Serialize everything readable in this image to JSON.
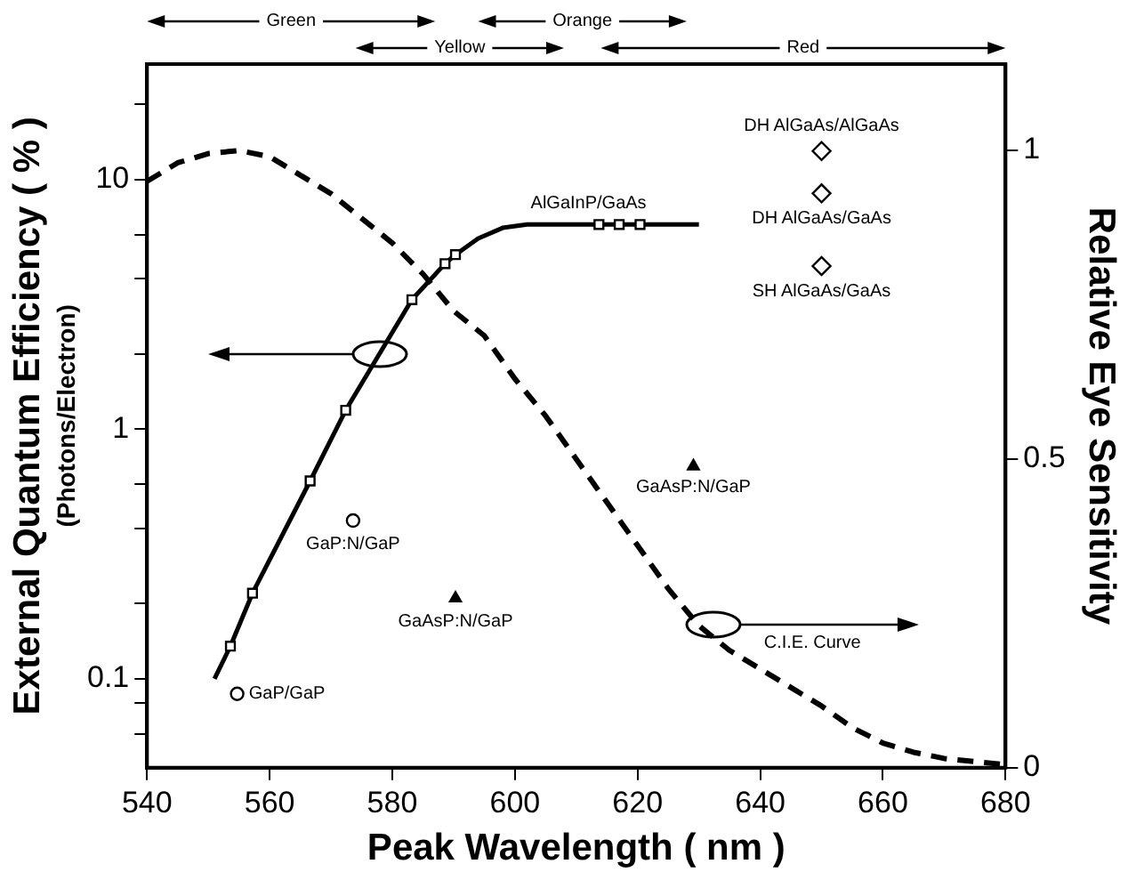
{
  "chart_data": {
    "type": "line",
    "xlabel": "Peak Wavelength ( nm )",
    "ylabel": "External Quantum Efficiency ( % )\n(Photons/Electron)",
    "y2label": "Relative Eye Sensitivity",
    "xlim": [
      540,
      680
    ],
    "xticks": [
      540,
      560,
      580,
      600,
      620,
      640,
      660,
      680
    ],
    "ylim": [
      0.044,
      29
    ],
    "log": "y",
    "yticks": [
      {
        "value": 0.06,
        "label": null
      },
      {
        "value": 0.08,
        "label": null
      },
      0.1,
      {
        "value": 0.2,
        "label": null
      },
      {
        "value": 0.4,
        "label": null
      },
      {
        "value": 0.6,
        "label": null
      },
      1,
      {
        "value": 2,
        "label": null
      },
      {
        "value": 4,
        "label": null
      },
      {
        "value": 6,
        "label": null
      },
      10,
      {
        "value": 20,
        "label": null
      }
    ],
    "y2lim": [
      0,
      1.14
    ],
    "y2ticks": [
      0,
      0.5,
      1
    ],
    "grid": false,
    "legend": false,
    "series": [
      {
        "color": "#000000",
        "marker": "none",
        "line_style": "solid",
        "x": [
          551,
          553.6,
          557.2,
          566.6,
          572.4,
          583.2,
          588.6,
          590.3,
          594,
          598,
          602,
          630
        ],
        "values": [
          0.1,
          0.135,
          0.22,
          0.62,
          1.19,
          3.3,
          4.6,
          5,
          5.8,
          6.4,
          6.6,
          6.6
        ]
      },
      {
        "type": "scatter",
        "color": "#000000",
        "marker": "square",
        "x": [
          553.6,
          557.2,
          566.6,
          572.4,
          583.2,
          588.6,
          590.3,
          613.7,
          617,
          620.4
        ],
        "values": [
          0.135,
          0.22,
          0.62,
          1.19,
          3.3,
          4.6,
          5,
          6.6,
          6.6,
          6.6
        ]
      },
      {
        "type": "scatter",
        "color": "#000000",
        "marker": "circle",
        "x": [
          554.7,
          573.6
        ],
        "values": [
          0.087,
          0.43
        ]
      },
      {
        "type": "scatter",
        "color": "#000000",
        "marker": "triangle",
        "x": [
          590.3,
          629.1
        ],
        "values": [
          0.21,
          0.71
        ]
      },
      {
        "type": "scatter",
        "color": "#000000",
        "marker": "diamond",
        "x": [
          650,
          650,
          650
        ],
        "values": [
          13,
          8.8,
          4.5
        ]
      },
      {
        "axis": "y2",
        "color": "#000000",
        "marker": "none",
        "line_style": "dashed",
        "x": [
          540,
          545,
          550,
          555,
          560,
          565,
          570,
          575,
          580,
          585,
          590,
          595,
          600,
          605,
          610,
          615,
          620,
          625,
          630,
          635,
          640,
          645,
          650,
          655,
          660,
          665,
          670,
          675,
          680
        ],
        "values": [
          0.95,
          0.98,
          0.995,
          1,
          0.99,
          0.96,
          0.93,
          0.89,
          0.85,
          0.8,
          0.74,
          0.7,
          0.63,
          0.57,
          0.5,
          0.43,
          0.36,
          0.29,
          0.23,
          0.19,
          0.16,
          0.13,
          0.1,
          0.065,
          0.04,
          0.025,
          0.015,
          0.01,
          0.005
        ]
      }
    ],
    "annotations": [
      {
        "text": "GaP/GaP",
        "x": 554.7,
        "y": 0.087
      },
      {
        "text": "GaP:N/GaP",
        "x": 573.6,
        "y": 0.43
      },
      {
        "text": "GaAsP:N/GaP",
        "x": 590.3,
        "y": 0.21
      },
      {
        "text": "GaAsP:N/GaP",
        "x": 629.1,
        "y": 0.71
      },
      {
        "text": "AlGaInP/GaAs",
        "x": 612,
        "y": 6.6
      },
      {
        "text": "DH AlGaAs/AlGaAs",
        "x": 650,
        "y": 13
      },
      {
        "text": "DH AlGaAs/GaAs",
        "x": 650,
        "y": 8.8
      },
      {
        "text": "SH AlGaAs/GaAs",
        "x": 650,
        "y": 4.5
      },
      "C.I.E. Curve",
      "Green",
      "Yellow",
      "Orange",
      "Red"
    ]
  }
}
